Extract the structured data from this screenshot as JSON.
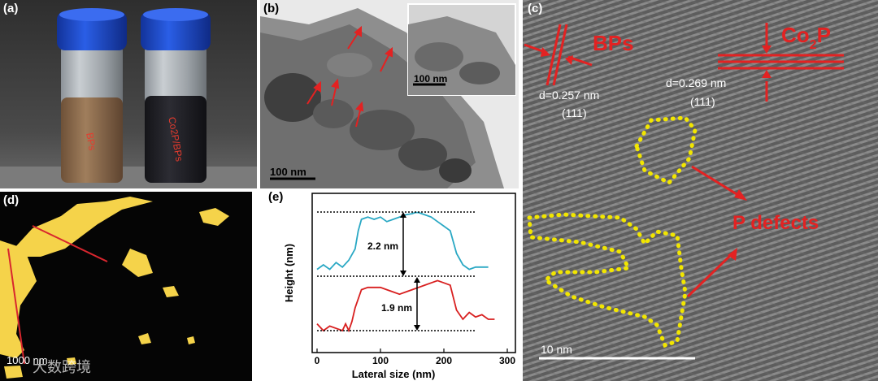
{
  "panels": {
    "a": {
      "label": "(a)",
      "vial_left_text": "BPs",
      "vial_right_text": "Co2P/BPs",
      "colors": {
        "background": "#3a3a3a",
        "cap": "#1b45c9",
        "bps_liquid": "#8b6a4b",
        "co2p_liquid": "#1e1e22",
        "label_text": "#e63b2e"
      }
    },
    "b": {
      "label": "(b)",
      "scale_main": "100 nm",
      "inset_scale": "100 nm",
      "arrow_color": "#e32222"
    },
    "c": {
      "label": "(c)",
      "bps_label": "BPs",
      "bps_d": "d=0.257 nm",
      "bps_hkl": "(111)",
      "co2p_label": "Co",
      "co2p_sub": "2",
      "co2p_label_p": "P",
      "co2p_d": "d=0.269 nm",
      "co2p_hkl": "(111)",
      "defects_label": "P defects",
      "scale": "10 nm",
      "colors": {
        "annotation": "#e32222",
        "defect_dots": "#f2e600"
      }
    },
    "d": {
      "label": "(d)",
      "scale": "1000 nm",
      "watermark": "大数跨境",
      "colors": {
        "background": "#050505",
        "flake": "#f5d34a",
        "line": "#d8262e"
      }
    },
    "e": {
      "label": "(e)"
    }
  },
  "chart_data": {
    "type": "line",
    "title": "",
    "xlabel": "Lateral size (nm)",
    "ylabel": "Height (nm)",
    "xlim": [
      0,
      300
    ],
    "xticks": [
      "0",
      "100",
      "200",
      "300"
    ],
    "grid": false,
    "annotations": [
      "2.2 nm",
      "1.9 nm"
    ],
    "series": [
      {
        "color": "#2aa8c4",
        "x": [
          0,
          10,
          20,
          30,
          40,
          50,
          60,
          65,
          70,
          80,
          90,
          100,
          110,
          120,
          130,
          140,
          150,
          155,
          160,
          170,
          180,
          190,
          200,
          210,
          220,
          230,
          240,
          250,
          260,
          270
        ],
        "y": [
          0.3,
          0.5,
          0.3,
          0.6,
          0.4,
          0.7,
          1.2,
          2.0,
          2.5,
          2.6,
          2.5,
          2.6,
          2.4,
          2.5,
          2.6,
          2.7,
          2.75,
          2.8,
          2.8,
          2.7,
          2.6,
          2.4,
          2.2,
          2.0,
          1.0,
          0.5,
          0.3,
          0.4,
          0.4,
          0.4
        ]
      },
      {
        "color": "#d81f1f",
        "x": [
          0,
          10,
          20,
          30,
          40,
          45,
          50,
          55,
          60,
          70,
          80,
          90,
          100,
          110,
          120,
          130,
          140,
          150,
          160,
          170,
          180,
          190,
          200,
          210,
          220,
          230,
          240,
          250,
          260,
          270,
          280
        ],
        "y": [
          0.3,
          0.0,
          0.2,
          0.1,
          0.0,
          0.3,
          0.0,
          0.4,
          1.0,
          1.8,
          1.9,
          1.9,
          1.9,
          1.8,
          1.7,
          1.6,
          1.7,
          1.8,
          1.9,
          2.0,
          2.1,
          2.2,
          2.1,
          2.0,
          0.9,
          0.5,
          0.8,
          0.6,
          0.7,
          0.5,
          0.5
        ]
      }
    ]
  }
}
